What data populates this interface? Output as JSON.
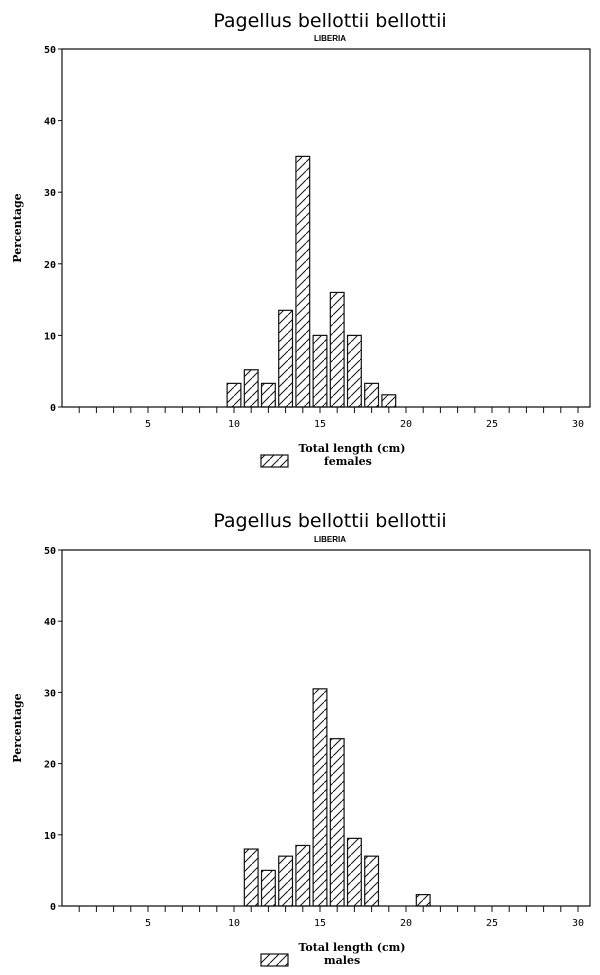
{
  "chart_data": [
    {
      "type": "bar",
      "title": "Pagellus bellottii bellottii",
      "subtitle": "LIBERIA",
      "xlabel": "Total length (cm)",
      "ylabel": "Percentage",
      "xlim": [
        0,
        30
      ],
      "ylim": [
        0,
        50
      ],
      "xticks": [
        5,
        10,
        15,
        20,
        25,
        30
      ],
      "yticks": [
        0,
        10,
        20,
        30,
        40,
        50
      ],
      "legend": "bottom",
      "grid": false,
      "series": [
        {
          "name": "females",
          "x": [
            10,
            11,
            12,
            13,
            14,
            15,
            16,
            17,
            18,
            19
          ],
          "values": [
            3.3,
            5.2,
            3.3,
            13.5,
            35,
            10,
            16,
            10,
            3.3,
            1.7
          ]
        }
      ]
    },
    {
      "type": "bar",
      "title": "Pagellus bellottii bellottii",
      "subtitle": "LIBERIA",
      "xlabel": "Total length (cm)",
      "ylabel": "Percentage",
      "xlim": [
        0,
        30
      ],
      "ylim": [
        0,
        50
      ],
      "xticks": [
        5,
        10,
        15,
        20,
        25,
        30
      ],
      "yticks": [
        0,
        10,
        20,
        30,
        40,
        50
      ],
      "legend": "bottom",
      "grid": false,
      "series": [
        {
          "name": "males",
          "x": [
            11,
            12,
            13,
            14,
            15,
            16,
            17,
            18,
            21
          ],
          "values": [
            8,
            5,
            7,
            8.5,
            30.5,
            23.5,
            9.5,
            7,
            1.6
          ]
        }
      ]
    }
  ]
}
